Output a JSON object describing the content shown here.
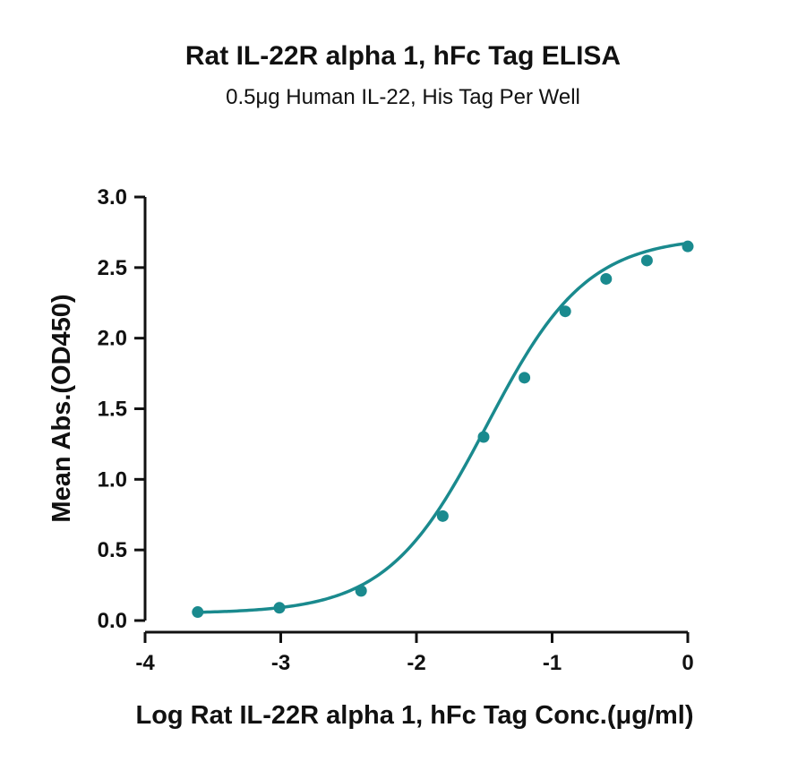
{
  "chart_data": {
    "type": "scatter",
    "title": "Rat IL-22R alpha 1, hFc Tag ELISA",
    "subtitle": "0.5μg Human IL-22, His Tag Per Well",
    "xlabel": "Log Rat IL-22R alpha 1, hFc Tag Conc.(μg/ml)",
    "ylabel": "Mean Abs.(OD450)",
    "xlim": [
      -4,
      0
    ],
    "ylim": [
      0,
      3
    ],
    "xticks": [
      -4,
      -3,
      -2,
      -1,
      0
    ],
    "xtick_labels": [
      "-4",
      "-3",
      "-2",
      "-1",
      "0"
    ],
    "yticks": [
      0,
      0.5,
      1.0,
      1.5,
      2.0,
      2.5,
      3.0
    ],
    "ytick_labels": [
      "0.0",
      "0.5",
      "1.0",
      "1.5",
      "2.0",
      "2.5",
      "3.0"
    ],
    "grid": false,
    "color": "#1a8a8e",
    "series": [
      {
        "x": [
          -3.612,
          -3.01,
          -2.408,
          -1.806,
          -1.505,
          -1.204,
          -0.903,
          -0.602,
          -0.301,
          0.0
        ],
        "y": [
          0.06,
          0.09,
          0.21,
          0.74,
          1.3,
          1.72,
          2.19,
          2.42,
          2.55,
          2.65
        ],
        "fit": "four-parameter logistic curve"
      }
    ]
  }
}
